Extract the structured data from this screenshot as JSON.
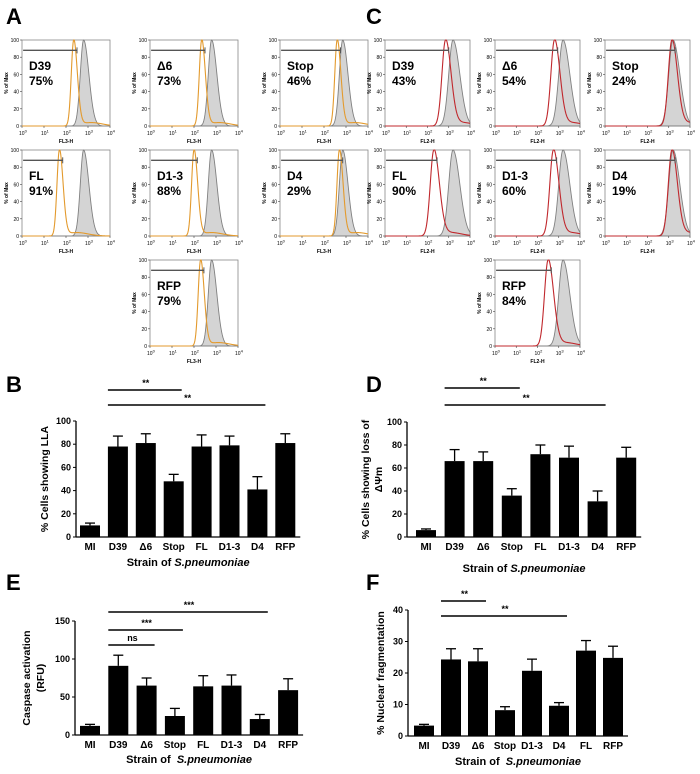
{
  "panel_letters": [
    "A",
    "B",
    "C",
    "D",
    "E",
    "F"
  ],
  "chart_data": [
    {
      "panel": "A",
      "type": "histogram-grid",
      "xlabel": "FL3-H",
      "ylabel": "% of Max",
      "x_ticks": [
        "10",
        "10",
        "10",
        "10",
        "10"
      ],
      "x_tick_exp": [
        "0",
        "1",
        "2",
        "3",
        "4"
      ],
      "y_ticks": [
        "0",
        "20",
        "40",
        "60",
        "80",
        "100"
      ],
      "xlim_log10": [
        0,
        4
      ],
      "ylim": [
        0,
        100
      ],
      "colors": {
        "control": "#e39a2d",
        "sample": "#808080",
        "fill": "#d4d4d4",
        "gate": "#555555"
      },
      "histograms": [
        {
          "label": "D39",
          "percent": "75%",
          "control_peak_log10": 2.35,
          "sample_peak_log10": 2.8
        },
        {
          "label": "Δ6",
          "percent": "73%",
          "control_peak_log10": 2.35,
          "sample_peak_log10": 2.8
        },
        {
          "label": "Stop",
          "percent": "46%",
          "control_peak_log10": 2.6,
          "sample_peak_log10": 2.85
        },
        {
          "label": "FL",
          "percent": "91%",
          "control_peak_log10": 1.7,
          "sample_peak_log10": 2.8
        },
        {
          "label": "D1-3",
          "percent": "88%",
          "control_peak_log10": 2.0,
          "sample_peak_log10": 2.8
        },
        {
          "label": "D4",
          "percent": "29%",
          "control_peak_log10": 2.7,
          "sample_peak_log10": 2.85
        },
        {
          "label": "RFP",
          "percent": "79%",
          "control_peak_log10": 2.3,
          "sample_peak_log10": 2.8
        }
      ]
    },
    {
      "panel": "C",
      "type": "histogram-grid",
      "xlabel": "FL2-H",
      "ylabel": "% of Max",
      "x_ticks": [
        "10",
        "10",
        "10",
        "10",
        "10"
      ],
      "x_tick_exp": [
        "0",
        "1",
        "2",
        "3",
        "4"
      ],
      "y_ticks": [
        "0",
        "20",
        "40",
        "60",
        "80",
        "100"
      ],
      "xlim_log10": [
        0,
        4
      ],
      "ylim": [
        0,
        100
      ],
      "colors": {
        "control": "#c0282d",
        "sample": "#808080",
        "fill": "#d4d4d4",
        "gate": "#555555"
      },
      "histograms": [
        {
          "label": "D39",
          "percent": "43%",
          "control_peak_log10": 2.85,
          "sample_peak_log10": 3.2
        },
        {
          "label": "Δ6",
          "percent": "54%",
          "control_peak_log10": 2.8,
          "sample_peak_log10": 3.2
        },
        {
          "label": "Stop",
          "percent": "24%",
          "control_peak_log10": 3.15,
          "sample_peak_log10": 3.2
        },
        {
          "label": "FL",
          "percent": "90%",
          "control_peak_log10": 2.3,
          "sample_peak_log10": 3.2
        },
        {
          "label": "D1-3",
          "percent": "60%",
          "control_peak_log10": 2.75,
          "sample_peak_log10": 3.2
        },
        {
          "label": "D4",
          "percent": "19%",
          "control_peak_log10": 3.15,
          "sample_peak_log10": 3.2
        },
        {
          "label": "RFP",
          "percent": "84%",
          "control_peak_log10": 2.5,
          "sample_peak_log10": 3.2
        }
      ]
    },
    {
      "panel": "B",
      "type": "bar",
      "categories": [
        "MI",
        "D39",
        "Δ6",
        "Stop",
        "FL",
        "D1-3",
        "D4",
        "RFP"
      ],
      "values": [
        10,
        78,
        81,
        48,
        78,
        79,
        41,
        81
      ],
      "errors": [
        2,
        9,
        8,
        6,
        10,
        8,
        11,
        8
      ],
      "ylabel": [
        "% Cells showing LLA"
      ],
      "xlabel_prefix": "Strain of ",
      "xlabel_italic": "S.pneumoniae",
      "ylim": [
        0,
        100
      ],
      "y_ticks": [
        "0",
        "20",
        "40",
        "60",
        "80",
        "100"
      ],
      "significance": [
        {
          "from": "D39",
          "to": "Stop",
          "label": "**"
        },
        {
          "from": "D39",
          "to": "D4",
          "label": "**"
        }
      ]
    },
    {
      "panel": "D",
      "type": "bar",
      "categories": [
        "MI",
        "D39",
        "Δ6",
        "Stop",
        "FL",
        "D1-3",
        "D4",
        "RFP"
      ],
      "values": [
        6,
        66,
        66,
        36,
        72,
        69,
        31,
        69
      ],
      "errors": [
        1,
        10,
        8,
        6,
        8,
        10,
        9,
        9
      ],
      "ylabel": [
        "% Cells showing loss of",
        "ΔΨm"
      ],
      "xlabel_prefix": "Strain of ",
      "xlabel_italic": "S.pneumoniae",
      "ylim": [
        0,
        100
      ],
      "y_ticks": [
        "0",
        "20",
        "40",
        "60",
        "80",
        "100"
      ],
      "significance": [
        {
          "from": "D39",
          "to": "Stop",
          "label": "**"
        },
        {
          "from": "D39",
          "to": "D4",
          "label": "**"
        }
      ]
    },
    {
      "panel": "E",
      "type": "bar",
      "categories": [
        "MI",
        "D39",
        "Δ6",
        "Stop",
        "FL",
        "D1-3",
        "D4",
        "RFP"
      ],
      "values": [
        12,
        91,
        65,
        25,
        64,
        65,
        21,
        59
      ],
      "errors": [
        2,
        14,
        10,
        10,
        14,
        14,
        6,
        15
      ],
      "ylabel": [
        "Caspase activation",
        "(RFU)"
      ],
      "xlabel_prefix": "Strain of  ",
      "xlabel_italic": "S.pneumoniae",
      "ylim": [
        0,
        150
      ],
      "y_ticks": [
        "0",
        "50",
        "100",
        "150"
      ],
      "significance": [
        {
          "from": "D39",
          "to": "D4",
          "label": "***"
        },
        {
          "from": "D39",
          "to": "Stop",
          "label": "***"
        },
        {
          "from": "D39",
          "to": "Δ6",
          "label": "ns"
        }
      ]
    },
    {
      "panel": "F",
      "type": "bar",
      "categories": [
        "MI",
        "D39",
        "Δ6",
        "Stop",
        "D1-3",
        "D4",
        "FL",
        "RFP"
      ],
      "values": [
        3.3,
        24.3,
        23.7,
        8.2,
        20.7,
        9.6,
        27.1,
        24.8
      ],
      "errors": [
        0.4,
        3.4,
        4.0,
        1.1,
        3.7,
        1.0,
        3.2,
        3.7
      ],
      "ylabel": [
        "% Nuclear fragmentation"
      ],
      "xlabel_prefix": "Strain of  ",
      "xlabel_italic": "S.pneumoniae",
      "ylim": [
        0,
        40
      ],
      "y_ticks": [
        "0",
        "10",
        "20",
        "30",
        "40"
      ],
      "significance": [
        {
          "from": "D39",
          "to": "Δ6",
          "label": "**"
        },
        {
          "from": "D39",
          "to": "D4",
          "label": "**"
        }
      ]
    }
  ]
}
